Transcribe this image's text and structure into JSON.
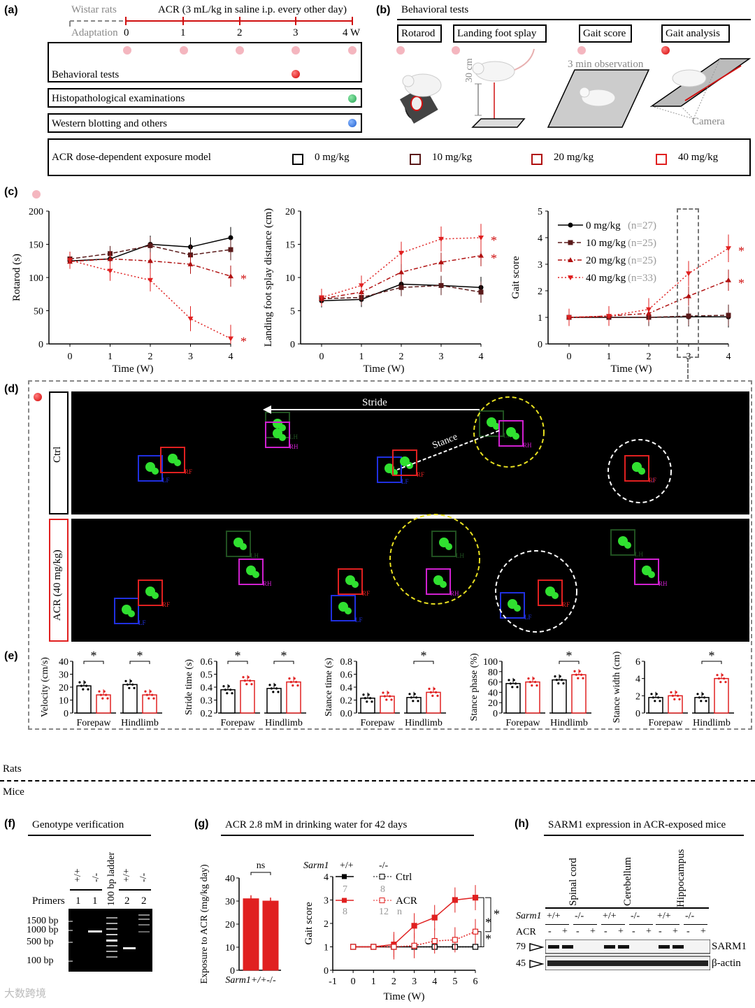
{
  "panel_a": {
    "label": "(a)",
    "wistar": "Wistar rats",
    "adaptation": "Adaptation",
    "acr_protocol": "ACR (3 mL/kg in saline i.p. every other day)",
    "ticks": [
      "0",
      "1",
      "2",
      "3",
      "4 W"
    ],
    "rows": [
      "Behavioral tests",
      "Histopathological examinations",
      "Western blotting and others"
    ],
    "model_label": "ACR dose-dependent exposure model",
    "doses": [
      "0 mg/kg",
      "10 mg/kg",
      "20 mg/kg",
      "40 mg/kg"
    ],
    "dose_colors": [
      "#000000",
      "#5a1a1a",
      "#b01010",
      "#e02020"
    ]
  },
  "panel_b": {
    "label": "(b)",
    "title": "Behavioral tests",
    "tests": [
      "Rotarod",
      "Landing foot splay",
      "Gait score",
      "Gait analysis"
    ],
    "height_label": "30 cm",
    "observation": "3 min observation",
    "camera": "Camera"
  },
  "panel_c": {
    "label": "(c)",
    "chart_data": [
      {
        "type": "line",
        "ylabel": "Rotarod (s)",
        "xlabel": "Time (W)",
        "ylim": [
          0,
          200
        ],
        "yticks": [
          "0",
          "50",
          "100",
          "150",
          "200"
        ],
        "x": [
          0,
          1,
          2,
          3,
          4
        ],
        "series": [
          {
            "name": "0 mg/kg",
            "values": [
              125,
              128,
              150,
              146,
              160
            ]
          },
          {
            "name": "10 mg/kg",
            "values": [
              128,
              136,
              148,
              134,
              142
            ]
          },
          {
            "name": "20 mg/kg",
            "values": [
              124,
              128,
              125,
              120,
              102
            ]
          },
          {
            "name": "40 mg/kg",
            "values": [
              126,
              110,
              96,
              38,
              8
            ]
          }
        ]
      },
      {
        "type": "line",
        "ylabel": "Landing foot splay distance (cm)",
        "xlabel": "Time (W)",
        "ylim": [
          0,
          20
        ],
        "yticks": [
          "0",
          "5",
          "10",
          "15",
          "20"
        ],
        "x": [
          0,
          1,
          2,
          3,
          4
        ],
        "series": [
          {
            "name": "0 mg/kg",
            "values": [
              6.5,
              6.7,
              9.0,
              8.8,
              8.5
            ]
          },
          {
            "name": "10 mg/kg",
            "values": [
              6.8,
              7.0,
              8.5,
              8.8,
              7.8
            ]
          },
          {
            "name": "20 mg/kg",
            "values": [
              6.8,
              7.8,
              10.8,
              12.3,
              13.3
            ]
          },
          {
            "name": "40 mg/kg",
            "values": [
              7.0,
              8.8,
              13.7,
              15.8,
              16.0
            ]
          }
        ]
      },
      {
        "type": "line",
        "ylabel": "Gait score",
        "xlabel": "Time (W)",
        "ylim": [
          0,
          5
        ],
        "yticks": [
          "0",
          "1",
          "2",
          "3",
          "4",
          "5"
        ],
        "x": [
          0,
          1,
          2,
          3,
          4
        ],
        "series": [
          {
            "name": "0 mg/kg",
            "values": [
              1,
              1,
              1,
              1.02,
              1.02
            ]
          },
          {
            "name": "10 mg/kg",
            "values": [
              1,
              1,
              1,
              1.05,
              1.08
            ]
          },
          {
            "name": "20 mg/kg",
            "values": [
              1,
              1.05,
              1.15,
              1.8,
              2.4
            ]
          },
          {
            "name": "40 mg/kg",
            "values": [
              1,
              1.05,
              1.3,
              2.65,
              3.6
            ]
          }
        ],
        "legend": [
          {
            "name": "0 mg/kg",
            "n": "(n=27)"
          },
          {
            "name": "10 mg/kg",
            "n": "(n=25)"
          },
          {
            "name": "20 mg/kg",
            "n": "(n=25)"
          },
          {
            "name": "40 mg/kg",
            "n": "(n=33)"
          }
        ]
      }
    ]
  },
  "panel_d": {
    "label": "(d)",
    "rows": [
      "Ctrl",
      "ACR (40 mg/kg)"
    ],
    "stride": "Stride",
    "stance": "Stance",
    "paws": [
      "RH",
      "RF",
      "LH",
      "LF"
    ]
  },
  "panel_e": {
    "label": "(e)",
    "chart_data": [
      {
        "type": "bar",
        "ylabel": "Velocity (cm/s)",
        "ylim": [
          0,
          40
        ],
        "yticks": [
          "0",
          "10",
          "20",
          "30",
          "40"
        ],
        "groups": [
          "Forepaw",
          "Hindlimb"
        ],
        "ctrl": [
          21,
          22
        ],
        "acr": [
          14,
          14
        ],
        "sig": [
          true,
          true
        ]
      },
      {
        "type": "bar",
        "ylabel": "Stride time (s)",
        "ylim": [
          0.2,
          0.6
        ],
        "yticks": [
          "0.2",
          "0.3",
          "0.4",
          "0.5",
          "0.6"
        ],
        "groups": [
          "Forepaw",
          "Hindlimb"
        ],
        "ctrl": [
          0.38,
          0.39
        ],
        "acr": [
          0.45,
          0.44
        ],
        "sig": [
          true,
          true
        ]
      },
      {
        "type": "bar",
        "ylabel": "Stance time (s)",
        "ylim": [
          0,
          0.8
        ],
        "yticks": [
          "0.0",
          "0.2",
          "0.4",
          "0.6",
          "0.8"
        ],
        "groups": [
          "Forepaw",
          "Hindlimb"
        ],
        "ctrl": [
          0.23,
          0.24
        ],
        "acr": [
          0.26,
          0.32
        ],
        "sig": [
          false,
          true
        ]
      },
      {
        "type": "bar",
        "ylabel": "Stance phase (%)",
        "ylim": [
          0,
          100
        ],
        "yticks": [
          "0",
          "20",
          "40",
          "60",
          "80",
          "100"
        ],
        "groups": [
          "Forepaw",
          "Hindlimb"
        ],
        "ctrl": [
          57,
          64
        ],
        "acr": [
          60,
          74
        ],
        "sig": [
          false,
          true
        ]
      },
      {
        "type": "bar",
        "ylabel": "Stance width (cm)",
        "ylim": [
          0,
          6
        ],
        "yticks": [
          "0",
          "2",
          "4",
          "6"
        ],
        "groups": [
          "Forepaw",
          "Hindlimb"
        ],
        "ctrl": [
          1.8,
          1.8
        ],
        "acr": [
          2.0,
          4.0
        ],
        "sig": [
          false,
          true
        ]
      }
    ]
  },
  "divider": {
    "top": "Rats",
    "bottom": "Mice"
  },
  "panel_f": {
    "label": "(f)",
    "title": "Genotype verification",
    "lane_tops": [
      "+/+",
      "-/-",
      "100 bp ladder",
      "+/+",
      "-/-"
    ],
    "primers_label": "Primers",
    "primers": [
      "1",
      "1",
      "",
      "2",
      "2"
    ],
    "bp": [
      "1500 bp",
      "1000 bp",
      "500 bp",
      "100 bp"
    ]
  },
  "panel_g": {
    "label": "(g)",
    "title": "ACR 2.8 mM in drinking water for 42 days",
    "chart_data": [
      {
        "type": "bar",
        "ylabel": "Exposure to ACR (mg/kg day)",
        "ylim": [
          0,
          40
        ],
        "yticks": [
          "0",
          "10",
          "20",
          "30",
          "40"
        ],
        "categories": [
          "Sarm1+/+",
          "-/-"
        ],
        "values": [
          31,
          30
        ],
        "sig": "ns"
      },
      {
        "type": "line",
        "ylabel": "Gait score",
        "xlabel": "Time (W)",
        "ylim": [
          0,
          4
        ],
        "xlim": [
          -1,
          6
        ],
        "yticks": [
          "0",
          "1",
          "2",
          "3",
          "4"
        ],
        "xticks": [
          "-1",
          "0",
          "1",
          "2",
          "3",
          "4",
          "5",
          "6"
        ],
        "x": [
          0,
          1,
          2,
          3,
          4,
          5,
          6
        ],
        "series": [
          {
            "name": "+/+ Ctrl",
            "values": [
              1,
              1,
              1,
              1,
              1,
              1,
              1
            ]
          },
          {
            "name": "-/- Ctrl",
            "values": [
              1,
              1,
              1,
              1,
              1,
              1,
              1
            ]
          },
          {
            "name": "+/+ ACR",
            "values": [
              1,
              1,
              1.1,
              1.9,
              2.25,
              3.0,
              3.1
            ]
          },
          {
            "name": "-/- ACR",
            "values": [
              1,
              1,
              1.0,
              1.05,
              1.25,
              1.3,
              1.65
            ]
          }
        ]
      }
    ],
    "legend": {
      "sarm": "Sarm1",
      "wt": "+/+",
      "ko": "-/-",
      "ctrl": "Ctrl",
      "acr": "ACR",
      "n_wt_ctrl": "7",
      "n_ko_ctrl": "8",
      "n_wt_acr": "8",
      "n_ko_acr": "12",
      "n": "n"
    }
  },
  "panel_h": {
    "label": "(h)",
    "title": "SARM1 expression in ACR-exposed mice",
    "tissues": [
      "Spinal cord",
      "Cerebellum",
      "Hippocampus"
    ],
    "sarm_label": "Sarm1",
    "acr_label": "ACR",
    "geno": [
      "+/+",
      "-/-"
    ],
    "acr_signs": [
      "-",
      "+"
    ],
    "markers": [
      "79",
      "45"
    ],
    "proteins": [
      "SARM1",
      "β-actin"
    ]
  },
  "stars": "*",
  "watermark": "大数跨境"
}
